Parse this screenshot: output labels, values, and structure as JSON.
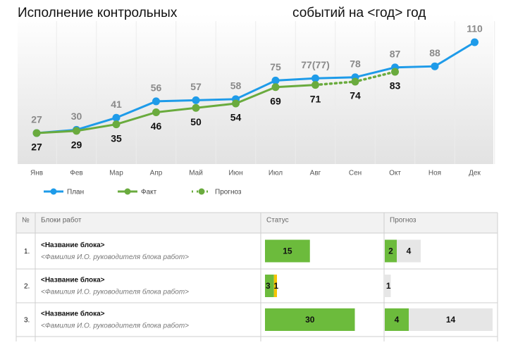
{
  "title": [
    "Исполнение контрольных",
    "событий на <год> год"
  ],
  "chart_data": {
    "type": "line",
    "categories": [
      "Янв",
      "Фев",
      "Мар",
      "Апр",
      "Май",
      "Июн",
      "Июл",
      "Авг",
      "Сен",
      "Окт",
      "Ноя",
      "Дек"
    ],
    "series": [
      {
        "name": "План",
        "color": "#1e9be9",
        "line_style": "solid",
        "label_position": "above",
        "values": [
          27,
          30,
          41,
          56,
          57,
          58,
          75,
          77,
          78,
          87,
          88,
          110
        ],
        "value_labels": [
          "27",
          "30",
          "41",
          "56",
          "57",
          "58",
          "75",
          "77(77)",
          "78",
          "87",
          "88",
          "110"
        ]
      },
      {
        "name": "Факт",
        "color": "#6aab3e",
        "line_style": "solid",
        "label_position": "below",
        "values": [
          27,
          29,
          35,
          46,
          50,
          54,
          69,
          71,
          null,
          null,
          null,
          null
        ]
      },
      {
        "name": "Прогноз",
        "color": "#6aab3e",
        "line_style": "dotted",
        "label_position": "below",
        "values": [
          null,
          null,
          null,
          null,
          null,
          null,
          null,
          71,
          74,
          83,
          null,
          null
        ]
      }
    ]
  },
  "table": {
    "headers": [
      "№",
      "Блоки работ",
      "Статус",
      "Прогноз"
    ],
    "rows": [
      {
        "number": "1.",
        "name": "<Название блока>",
        "leader": "<Фамилия И.О. руководителя блока работ>",
        "status": [
          {
            "value": 15,
            "color": "#6cbb3c"
          }
        ],
        "forecast": [
          {
            "value": 2,
            "color": "#6cbb3c"
          },
          {
            "value": 4,
            "color": "#e6e6e6"
          }
        ]
      },
      {
        "number": "2.",
        "name": "<Название блока>",
        "leader": "<Фамилия И.О. руководителя блока работ>",
        "status": [
          {
            "value": 3,
            "color": "#6cbb3c"
          },
          {
            "value": 1,
            "color": "#f5c400"
          }
        ],
        "forecast": [
          {
            "value": 1,
            "color": "#e6e6e6"
          }
        ]
      },
      {
        "number": "3.",
        "name": "<Название блока>",
        "leader": "<Фамилия И.О. руководителя блока работ>",
        "status": [
          {
            "value": 30,
            "color": "#6cbb3c"
          }
        ],
        "forecast": [
          {
            "value": 4,
            "color": "#6cbb3c"
          },
          {
            "value": 14,
            "color": "#e6e6e6"
          }
        ]
      }
    ]
  }
}
